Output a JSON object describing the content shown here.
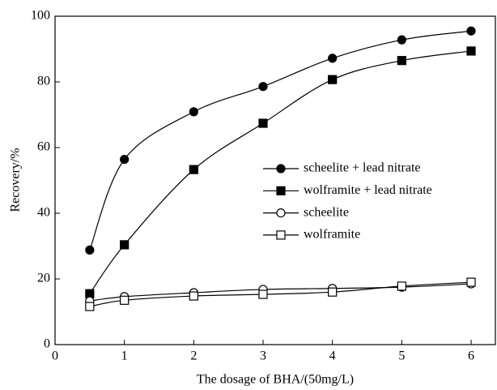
{
  "chart_data": {
    "type": "line",
    "xlabel": "The dosage of BHA/(50mg/L)",
    "ylabel": "Recovery/%",
    "xlim": [
      0,
      6.35
    ],
    "xticks": [
      0,
      1,
      2,
      3,
      4,
      5,
      6
    ],
    "ylim": [
      0,
      100
    ],
    "yticks": [
      0,
      20,
      40,
      60,
      80,
      100
    ],
    "legend": "center right",
    "series": [
      {
        "name": "scheelite + lead nitrate",
        "color": "#000000",
        "marker": "filled-circle",
        "x": [
          0.5,
          1,
          2,
          3,
          4,
          5,
          6
        ],
        "values": [
          28.8,
          56.4,
          70.9,
          78.6,
          87.2,
          92.8,
          95.5
        ]
      },
      {
        "name": "wolframite + lead nitrate",
        "color": "#000000",
        "marker": "filled-square",
        "x": [
          0.5,
          1,
          2,
          3,
          4,
          5,
          6
        ],
        "values": [
          15.5,
          30.4,
          53.3,
          67.4,
          80.7,
          86.5,
          89.4
        ]
      },
      {
        "name": "scheelite",
        "color": "#000000",
        "marker": "open-circle",
        "x": [
          0.5,
          1,
          2,
          3,
          4,
          5,
          6
        ],
        "values": [
          13.3,
          14.6,
          15.8,
          16.8,
          17.1,
          17.5,
          18.5
        ]
      },
      {
        "name": "wolframite",
        "color": "#000000",
        "marker": "open-square",
        "x": [
          0.5,
          1,
          2,
          3,
          4,
          5,
          6
        ],
        "values": [
          11.6,
          13.5,
          14.8,
          15.3,
          16.0,
          17.8,
          19.0
        ]
      }
    ]
  }
}
